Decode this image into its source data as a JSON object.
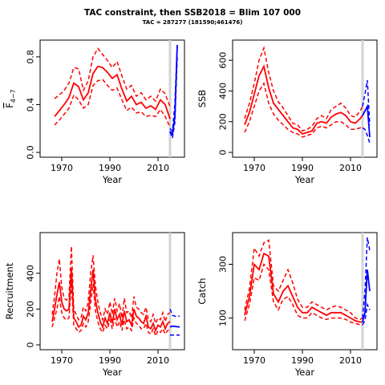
{
  "title": "TAC constraint, then  SSB2018 = Blim 107 000",
  "subtitle": "TAC = 287277 (181590;461476)",
  "colors": {
    "history": "#ff0000",
    "projection": "#0000ff",
    "marker": "#d3d3d3"
  },
  "chart_data": [
    {
      "type": "line",
      "ylabel": "F4-7",
      "ylabel_main": "F",
      "ylabel_sub": "4−7",
      "xlabel": "Year",
      "xlim": [
        1961,
        2021
      ],
      "ylim": [
        0,
        0.9
      ],
      "x_ticks": [
        1970,
        1990,
        2010
      ],
      "y_ticks": [
        0.0,
        0.4,
        0.8
      ],
      "y_tick_labels": [
        "0.0",
        "0.4",
        "0.8"
      ],
      "marker_year": 2015,
      "history": {
        "x": [
          1967,
          1969,
          1971,
          1973,
          1975,
          1977,
          1979,
          1981,
          1983,
          1985,
          1987,
          1989,
          1991,
          1993,
          1995,
          1997,
          1999,
          2001,
          2003,
          2005,
          2007,
          2009,
          2011,
          2013,
          2015
        ],
        "median": [
          0.3,
          0.35,
          0.4,
          0.46,
          0.58,
          0.55,
          0.44,
          0.5,
          0.66,
          0.72,
          0.71,
          0.67,
          0.62,
          0.65,
          0.53,
          0.43,
          0.47,
          0.4,
          0.42,
          0.37,
          0.39,
          0.36,
          0.44,
          0.4,
          0.28
        ],
        "lower": [
          0.23,
          0.27,
          0.32,
          0.37,
          0.48,
          0.44,
          0.37,
          0.4,
          0.56,
          0.6,
          0.61,
          0.56,
          0.52,
          0.54,
          0.44,
          0.35,
          0.38,
          0.33,
          0.34,
          0.3,
          0.31,
          0.3,
          0.36,
          0.3,
          0.21
        ],
        "upper": [
          0.45,
          0.48,
          0.52,
          0.58,
          0.71,
          0.7,
          0.52,
          0.6,
          0.8,
          0.87,
          0.82,
          0.77,
          0.71,
          0.76,
          0.64,
          0.53,
          0.56,
          0.47,
          0.5,
          0.44,
          0.47,
          0.43,
          0.53,
          0.49,
          0.38
        ]
      },
      "projection": {
        "x": [
          2015,
          2016,
          2017,
          2018
        ],
        "median": [
          0.18,
          0.15,
          0.3,
          0.95
        ],
        "lower": [
          0.17,
          0.12,
          0.25,
          0.8
        ],
        "upper": [
          0.2,
          0.18,
          0.4,
          1.0
        ]
      }
    },
    {
      "type": "line",
      "ylabel": "SSB",
      "xlabel": "Year",
      "xlim": [
        1961,
        2021
      ],
      "ylim": [
        0,
        700
      ],
      "x_ticks": [
        1970,
        1990,
        2010
      ],
      "y_ticks": [
        0,
        200,
        400,
        600
      ],
      "y_tick_labels": [
        "0",
        "200",
        "400",
        "600"
      ],
      "marker_year": 2015,
      "history": {
        "x": [
          1966,
          1968,
          1970,
          1972,
          1974,
          1976,
          1978,
          1980,
          1982,
          1984,
          1986,
          1988,
          1990,
          1992,
          1994,
          1996,
          1998,
          2000,
          2002,
          2004,
          2006,
          2008,
          2010,
          2012,
          2014,
          2015
        ],
        "median": [
          180,
          260,
          380,
          500,
          560,
          420,
          320,
          280,
          240,
          200,
          160,
          150,
          120,
          130,
          140,
          190,
          200,
          190,
          230,
          250,
          260,
          240,
          200,
          190,
          220,
          240
        ],
        "lower": [
          130,
          200,
          300,
          400,
          450,
          320,
          250,
          210,
          180,
          150,
          130,
          120,
          100,
          110,
          120,
          160,
          170,
          160,
          180,
          200,
          200,
          180,
          150,
          150,
          160,
          170
        ],
        "upper": [
          220,
          320,
          450,
          600,
          680,
          520,
          400,
          330,
          290,
          240,
          190,
          180,
          140,
          150,
          170,
          220,
          240,
          220,
          280,
          300,
          320,
          290,
          240,
          230,
          270,
          300
        ]
      },
      "projection": {
        "x": [
          2015,
          2016,
          2017,
          2018
        ],
        "median": [
          240,
          270,
          300,
          100
        ],
        "lower": [
          160,
          150,
          110,
          60
        ],
        "upper": [
          300,
          380,
          470,
          180
        ]
      }
    },
    {
      "type": "line",
      "ylabel": "Recruitment",
      "xlabel": "Year",
      "xlim": [
        1961,
        2021
      ],
      "ylim": [
        0,
        600
      ],
      "x_ticks": [
        1970,
        1990,
        2010
      ],
      "y_ticks": [
        0,
        200,
        400
      ],
      "y_tick_labels": [
        "0",
        "200",
        "400"
      ],
      "marker_year": 2015,
      "history": {
        "x": [
          1966,
          1967,
          1968,
          1969,
          1970,
          1971,
          1972,
          1973,
          1974,
          1975,
          1976,
          1977,
          1978,
          1979,
          1980,
          1981,
          1982,
          1983,
          1984,
          1985,
          1986,
          1987,
          1988,
          1989,
          1990,
          1991,
          1992,
          1993,
          1994,
          1995,
          1996,
          1997,
          1998,
          1999,
          2000,
          2001,
          2002,
          2003,
          2004,
          2005,
          2006,
          2007,
          2008,
          2009,
          2010,
          2011,
          2012,
          2013,
          2014,
          2015
        ],
        "median": [
          130,
          200,
          280,
          350,
          240,
          200,
          190,
          200,
          430,
          150,
          130,
          100,
          110,
          160,
          140,
          180,
          300,
          420,
          250,
          180,
          130,
          100,
          150,
          120,
          180,
          120,
          200,
          140,
          170,
          110,
          190,
          130,
          140,
          110,
          200,
          160,
          150,
          130,
          120,
          160,
          100,
          90,
          120,
          80,
          110,
          100,
          130,
          90,
          120,
          130
        ],
        "lower": [
          100,
          150,
          200,
          270,
          180,
          150,
          140,
          150,
          350,
          110,
          90,
          70,
          80,
          120,
          100,
          130,
          230,
          340,
          190,
          130,
          90,
          70,
          110,
          90,
          140,
          90,
          150,
          100,
          130,
          80,
          140,
          90,
          100,
          80,
          150,
          120,
          110,
          90,
          90,
          120,
          70,
          60,
          90,
          50,
          80,
          70,
          90,
          60,
          80,
          90
        ],
        "upper": [
          170,
          270,
          400,
          480,
          320,
          260,
          250,
          270,
          550,
          200,
          170,
          140,
          150,
          210,
          190,
          240,
          400,
          500,
          330,
          240,
          180,
          140,
          200,
          170,
          240,
          170,
          260,
          190,
          230,
          150,
          260,
          180,
          190,
          150,
          270,
          210,
          200,
          180,
          170,
          210,
          140,
          130,
          170,
          120,
          150,
          140,
          180,
          130,
          170,
          180
        ]
      },
      "projection": {
        "x": [
          2015,
          2016,
          2017,
          2018,
          2019
        ],
        "median": [
          100,
          105,
          103,
          101,
          100
        ],
        "lower": [
          55,
          55,
          55,
          55,
          55
        ],
        "upper": [
          200,
          165,
          160,
          160,
          160
        ]
      }
    },
    {
      "type": "line",
      "ylabel": "Catch",
      "xlabel": "Year",
      "xlim": [
        1961,
        2021
      ],
      "ylim": [
        0,
        400
      ],
      "x_ticks": [
        1970,
        1990,
        2010
      ],
      "y_ticks": [
        100,
        300
      ],
      "y_tick_labels": [
        "100",
        "300"
      ],
      "marker_year": 2015,
      "history": {
        "x": [
          1966,
          1968,
          1970,
          1972,
          1974,
          1976,
          1978,
          1980,
          1982,
          1984,
          1986,
          1988,
          1990,
          1992,
          1994,
          1996,
          1998,
          2000,
          2002,
          2004,
          2006,
          2008,
          2010,
          2012,
          2014,
          2015
        ],
        "median": [
          110,
          180,
          300,
          280,
          340,
          330,
          190,
          160,
          200,
          220,
          180,
          140,
          120,
          120,
          140,
          130,
          120,
          110,
          120,
          120,
          120,
          110,
          100,
          90,
          85,
          85
        ],
        "lower": [
          90,
          150,
          250,
          240,
          300,
          280,
          160,
          130,
          170,
          180,
          150,
          110,
          100,
          100,
          120,
          110,
          100,
          95,
          100,
          100,
          100,
          95,
          85,
          80,
          75,
          75
        ],
        "upper": [
          130,
          210,
          360,
          330,
          380,
          390,
          220,
          200,
          240,
          280,
          230,
          170,
          140,
          140,
          160,
          150,
          140,
          130,
          140,
          145,
          140,
          130,
          120,
          100,
          95,
          100
        ]
      },
      "projection": {
        "x": [
          2015,
          2016,
          2017,
          2018
        ],
        "median": [
          85,
          120,
          280,
          200
        ],
        "lower": [
          75,
          90,
          150,
          130
        ],
        "upper": [
          100,
          200,
          420,
          350
        ]
      }
    }
  ]
}
